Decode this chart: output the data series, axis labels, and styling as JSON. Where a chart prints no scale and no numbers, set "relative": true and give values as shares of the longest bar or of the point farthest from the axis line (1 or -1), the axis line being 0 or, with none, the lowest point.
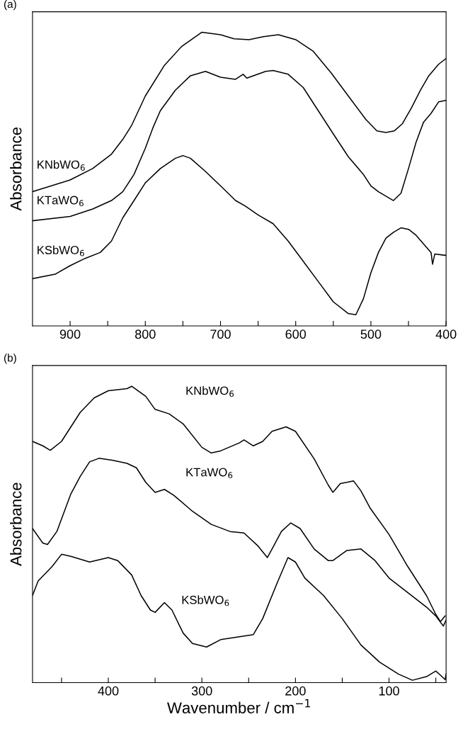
{
  "chart_data": [
    {
      "type": "line",
      "title": "(a)",
      "ylabel": "Absorbance",
      "relative": true,
      "xlim": [
        950,
        400
      ],
      "xticks": [
        {
          "value": 900,
          "label": "900"
        },
        {
          "value": 850,
          "label": null
        },
        {
          "value": 800,
          "label": "800"
        },
        {
          "value": 750,
          "label": null
        },
        {
          "value": 700,
          "label": "700"
        },
        {
          "value": 650,
          "label": null
        },
        {
          "value": 600,
          "label": "600"
        },
        {
          "value": 550,
          "label": null
        },
        {
          "value": 500,
          "label": "500"
        },
        {
          "value": 450,
          "label": null
        },
        {
          "value": 400,
          "label": "400"
        }
      ],
      "grid": false,
      "legend": false,
      "marker": "none",
      "line_style": "solid",
      "series": [
        {
          "name": "KNbWO$_{6}$",
          "color": "#000000",
          "x": [
            950,
            900,
            870,
            845,
            830,
            818,
            800,
            775,
            752,
            725,
            700,
            682,
            662,
            643,
            623,
            600,
            577,
            553,
            530,
            507,
            492,
            480,
            469,
            458,
            446,
            434,
            423,
            410,
            400
          ],
          "values": [
            0.457,
            0.497,
            0.536,
            0.585,
            0.635,
            0.684,
            0.783,
            0.886,
            0.951,
            1.0,
            0.992,
            0.978,
            0.975,
            0.985,
            0.992,
            0.975,
            0.936,
            0.862,
            0.783,
            0.704,
            0.664,
            0.659,
            0.664,
            0.689,
            0.743,
            0.803,
            0.852,
            0.891,
            0.911
          ]
        },
        {
          "name": "KTaWO$_{6}$",
          "color": "#000000",
          "x": [
            950,
            900,
            870,
            845,
            830,
            815,
            800,
            790,
            780,
            760,
            740,
            720,
            700,
            680,
            670,
            665,
            640,
            630,
            610,
            590,
            570,
            550,
            530,
            510,
            500,
            490,
            480,
            470,
            460,
            450,
            440,
            430,
            420,
            410,
            400
          ],
          "values": [
            0.358,
            0.373,
            0.398,
            0.427,
            0.457,
            0.516,
            0.605,
            0.674,
            0.733,
            0.803,
            0.852,
            0.867,
            0.847,
            0.84,
            0.857,
            0.844,
            0.867,
            0.87,
            0.857,
            0.812,
            0.733,
            0.654,
            0.576,
            0.516,
            0.477,
            0.457,
            0.442,
            0.427,
            0.452,
            0.536,
            0.625,
            0.694,
            0.724,
            0.763,
            0.768
          ]
        },
        {
          "name": "KSbWO$_{6}$",
          "color": "#000000",
          "x": [
            950,
            920,
            900,
            880,
            860,
            845,
            830,
            815,
            800,
            780,
            760,
            750,
            740,
            720,
            700,
            680,
            667,
            650,
            630,
            610,
            590,
            570,
            550,
            530,
            520,
            510,
            500,
            490,
            480,
            470,
            460,
            450,
            440,
            430,
            420,
            418,
            415,
            400
          ],
          "values": [
            0.161,
            0.176,
            0.205,
            0.23,
            0.25,
            0.289,
            0.368,
            0.427,
            0.487,
            0.536,
            0.571,
            0.58,
            0.571,
            0.526,
            0.477,
            0.427,
            0.408,
            0.378,
            0.348,
            0.289,
            0.22,
            0.151,
            0.082,
            0.042,
            0.038,
            0.092,
            0.181,
            0.25,
            0.299,
            0.319,
            0.334,
            0.329,
            0.309,
            0.279,
            0.25,
            0.21,
            0.245,
            0.24
          ]
        }
      ]
    },
    {
      "type": "line",
      "title": "(b)",
      "ylabel": "Absorbance",
      "xlabel": "Wavenumber / cm$^{−1}$",
      "relative": true,
      "xlim": [
        481,
        39
      ],
      "xticks": [
        {
          "value": 450,
          "label": null
        },
        {
          "value": 400,
          "label": "400"
        },
        {
          "value": 350,
          "label": null
        },
        {
          "value": 300,
          "label": "300"
        },
        {
          "value": 250,
          "label": null
        },
        {
          "value": 200,
          "label": "200"
        },
        {
          "value": 150,
          "label": null
        },
        {
          "value": 100,
          "label": "100"
        },
        {
          "value": 50,
          "label": null
        }
      ],
      "grid": false,
      "legend": false,
      "marker": "none",
      "line_style": "solid",
      "series": [
        {
          "name": "KNbWO$_{6}$",
          "color": "#000000",
          "x": [
            481,
            470,
            462,
            450,
            440,
            430,
            415,
            400,
            380,
            375,
            360,
            350,
            335,
            320,
            300,
            290,
            280,
            260,
            255,
            245,
            235,
            225,
            210,
            200,
            180,
            165,
            160,
            152,
            145,
            138,
            130,
            120,
            100,
            80,
            60,
            50,
            45,
            40
          ],
          "values": [
            0.814,
            0.799,
            0.784,
            0.814,
            0.863,
            0.912,
            0.961,
            0.985,
            0.992,
            1.0,
            0.966,
            0.922,
            0.907,
            0.873,
            0.794,
            0.775,
            0.782,
            0.809,
            0.819,
            0.799,
            0.814,
            0.848,
            0.863,
            0.848,
            0.755,
            0.667,
            0.642,
            0.672,
            0.676,
            0.681,
            0.647,
            0.588,
            0.5,
            0.392,
            0.294,
            0.23,
            0.206,
            0.225
          ]
        },
        {
          "name": "KTaWO$_{6}$",
          "color": "#000000",
          "x": [
            481,
            470,
            465,
            455,
            440,
            430,
            420,
            410,
            395,
            380,
            370,
            360,
            350,
            340,
            330,
            310,
            290,
            270,
            255,
            240,
            230,
            225,
            215,
            205,
            195,
            180,
            165,
            160,
            145,
            130,
            115,
            100,
            80,
            60,
            50,
            42,
            39
          ],
          "values": [
            0.52,
            0.471,
            0.466,
            0.51,
            0.637,
            0.696,
            0.745,
            0.757,
            0.75,
            0.74,
            0.725,
            0.676,
            0.642,
            0.652,
            0.632,
            0.578,
            0.534,
            0.51,
            0.505,
            0.461,
            0.422,
            0.451,
            0.51,
            0.539,
            0.52,
            0.451,
            0.412,
            0.412,
            0.446,
            0.451,
            0.412,
            0.353,
            0.304,
            0.255,
            0.225,
            0.191,
            0.211
          ]
        },
        {
          "name": "KSbWO$_{6}$",
          "color": "#000000",
          "x": [
            481,
            475,
            460,
            450,
            440,
            420,
            400,
            390,
            375,
            365,
            355,
            350,
            340,
            332,
            320,
            310,
            295,
            280,
            260,
            245,
            235,
            220,
            208,
            200,
            190,
            170,
            150,
            130,
            110,
            90,
            75,
            60,
            50,
            45,
            40,
            39
          ],
          "values": [
            0.294,
            0.343,
            0.392,
            0.433,
            0.426,
            0.407,
            0.422,
            0.412,
            0.363,
            0.294,
            0.245,
            0.237,
            0.27,
            0.245,
            0.167,
            0.132,
            0.12,
            0.145,
            0.155,
            0.162,
            0.216,
            0.333,
            0.422,
            0.407,
            0.353,
            0.294,
            0.216,
            0.127,
            0.069,
            0.029,
            0.008,
            0.02,
            0.039,
            0.025,
            0.01,
            0.029
          ]
        }
      ]
    }
  ]
}
